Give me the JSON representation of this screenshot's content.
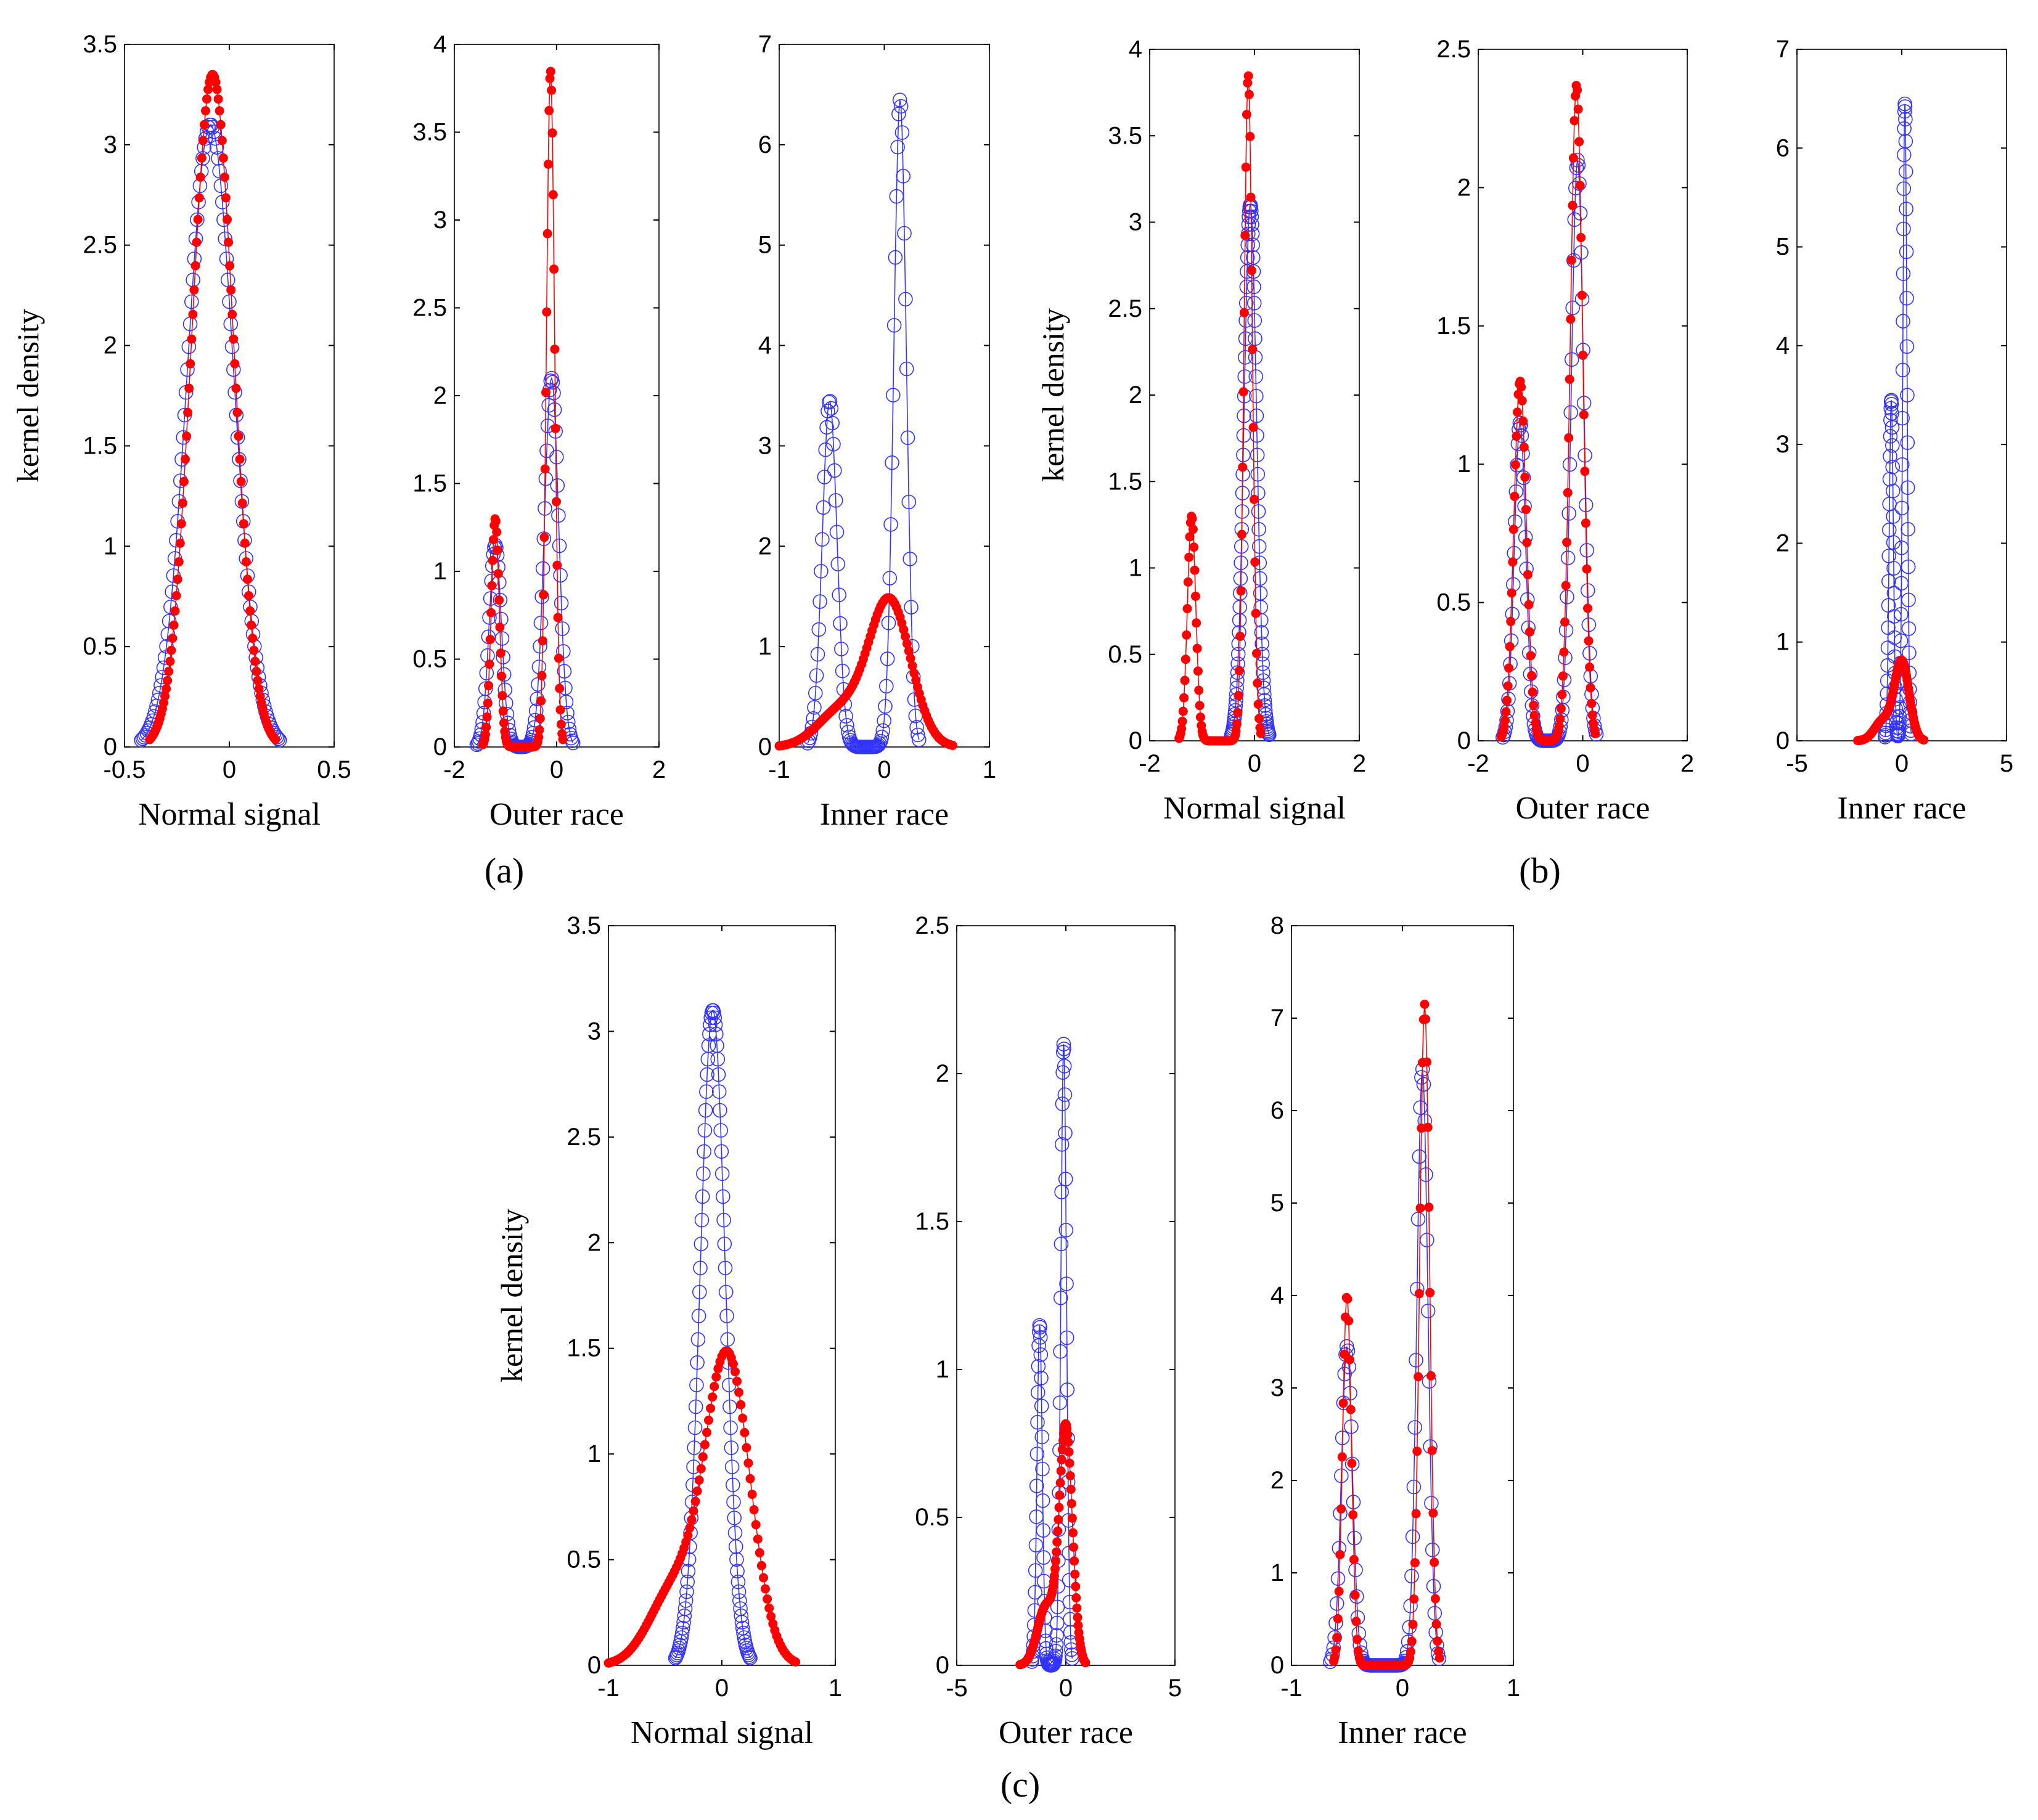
{
  "figure": {
    "panel_labels": [
      "(a)",
      "(b)",
      "(c)"
    ],
    "ylabel": "kernel density"
  },
  "colors": {
    "blue_series": "#3333ff",
    "red_series": "#ff0000",
    "axes": "#000000"
  },
  "series_legend": [
    {
      "name": "blue open circles",
      "marker": "open-circle",
      "color": "#3333ff"
    },
    {
      "name": "red filled dots",
      "marker": "filled-dot",
      "color": "#ff0000"
    }
  ],
  "chart_data": [
    {
      "id": "a1",
      "type": "line",
      "panel": "(a)",
      "title": "",
      "xlabel": "Normal signal",
      "ylabel": "kernel density",
      "xlim": [
        -0.5,
        0.5
      ],
      "ylim": [
        0,
        3.5
      ],
      "xticks": [
        -0.5,
        0,
        0.5
      ],
      "yticks": [
        0,
        0.5,
        1,
        1.5,
        2,
        2.5,
        3,
        3.5
      ],
      "series": [
        {
          "name": "blue",
          "style": "open-circle",
          "components": [
            {
              "mu": -0.09,
              "sigma": 0.11,
              "peak": 3.1
            }
          ]
        },
        {
          "name": "red",
          "style": "filled-dot",
          "components": [
            {
              "mu": -0.08,
              "sigma": 0.1,
              "peak": 3.35
            }
          ]
        }
      ]
    },
    {
      "id": "a2",
      "type": "line",
      "panel": "(a)",
      "title": "",
      "xlabel": "Outer race",
      "ylabel": "",
      "xlim": [
        -2,
        2
      ],
      "ylim": [
        0,
        4
      ],
      "xticks": [
        -2,
        0,
        2
      ],
      "yticks": [
        0,
        0.5,
        1,
        1.5,
        2,
        2.5,
        3,
        3.5,
        4
      ],
      "series": [
        {
          "name": "blue",
          "style": "open-circle",
          "components": [
            {
              "mu": -1.2,
              "sigma": 0.12,
              "peak": 1.15
            },
            {
              "mu": -0.1,
              "sigma": 0.14,
              "peak": 2.1
            }
          ]
        },
        {
          "name": "red",
          "style": "filled-dot",
          "components": [
            {
              "mu": -1.2,
              "sigma": 0.08,
              "peak": 1.3
            },
            {
              "mu": -0.12,
              "sigma": 0.08,
              "peak": 3.85
            }
          ]
        }
      ]
    },
    {
      "id": "a3",
      "type": "line",
      "panel": "(a)",
      "title": "",
      "xlabel": "Inner race",
      "ylabel": "",
      "xlim": [
        -1,
        1
      ],
      "ylim": [
        0,
        7
      ],
      "xticks": [
        -1,
        0,
        1
      ],
      "yticks": [
        0,
        1,
        2,
        3,
        4,
        5,
        6,
        7
      ],
      "series": [
        {
          "name": "blue",
          "style": "open-circle",
          "components": [
            {
              "mu": -0.52,
              "sigma": 0.07,
              "peak": 3.45
            },
            {
              "mu": 0.15,
              "sigma": 0.06,
              "peak": 6.45
            }
          ]
        },
        {
          "name": "red",
          "style": "filled-dot",
          "components": [
            {
              "mu": 0.05,
              "sigma": 0.2,
              "peak": 1.45
            },
            {
              "mu": -0.42,
              "sigma": 0.22,
              "peak": 0.35
            }
          ]
        }
      ]
    },
    {
      "id": "b1",
      "type": "line",
      "panel": "(b)",
      "title": "",
      "xlabel": "Normal signal",
      "ylabel": "kernel density",
      "xlim": [
        -2,
        2
      ],
      "ylim": [
        0,
        4
      ],
      "xticks": [
        -2,
        0,
        2
      ],
      "yticks": [
        0,
        0.5,
        1,
        1.5,
        2,
        2.5,
        3,
        3.5,
        4
      ],
      "series": [
        {
          "name": "blue",
          "style": "open-circle",
          "components": [
            {
              "mu": -0.08,
              "sigma": 0.12,
              "peak": 3.1
            }
          ]
        },
        {
          "name": "red",
          "style": "filled-dot",
          "components": [
            {
              "mu": -1.2,
              "sigma": 0.08,
              "peak": 1.3
            },
            {
              "mu": -0.12,
              "sigma": 0.08,
              "peak": 3.85
            }
          ]
        }
      ]
    },
    {
      "id": "b2",
      "type": "line",
      "panel": "(b)",
      "title": "",
      "xlabel": "Outer race",
      "ylabel": "",
      "xlim": [
        -2,
        2
      ],
      "ylim": [
        0,
        2.5
      ],
      "xticks": [
        -2,
        0,
        2
      ],
      "yticks": [
        0,
        0.5,
        1,
        1.5,
        2,
        2.5
      ],
      "series": [
        {
          "name": "blue",
          "style": "open-circle",
          "components": [
            {
              "mu": -1.2,
              "sigma": 0.11,
              "peak": 1.15
            },
            {
              "mu": -0.1,
              "sigma": 0.12,
              "peak": 2.1
            }
          ]
        },
        {
          "name": "red",
          "style": "filled-dot",
          "components": [
            {
              "mu": -1.2,
              "sigma": 0.12,
              "peak": 1.3
            },
            {
              "mu": -0.12,
              "sigma": 0.12,
              "peak": 2.37
            }
          ]
        }
      ]
    },
    {
      "id": "b3",
      "type": "line",
      "panel": "(b)",
      "title": "",
      "xlabel": "Inner race",
      "ylabel": "",
      "xlim": [
        -5,
        5
      ],
      "ylim": [
        0,
        7
      ],
      "xticks": [
        -5,
        0,
        5
      ],
      "yticks": [
        0,
        1,
        2,
        3,
        4,
        5,
        6,
        7
      ],
      "series": [
        {
          "name": "blue",
          "style": "open-circle",
          "components": [
            {
              "mu": -0.5,
              "sigma": 0.1,
              "peak": 3.45
            },
            {
              "mu": 0.15,
              "sigma": 0.1,
              "peak": 6.45
            }
          ]
        },
        {
          "name": "red",
          "style": "filled-dot",
          "components": [
            {
              "mu": 0.0,
              "sigma": 0.35,
              "peak": 0.8
            },
            {
              "mu": -0.9,
              "sigma": 0.4,
              "peak": 0.2
            }
          ]
        }
      ]
    },
    {
      "id": "c1",
      "type": "line",
      "panel": "(c)",
      "title": "",
      "xlabel": "Normal signal",
      "ylabel": "kernel density",
      "xlim": [
        -1,
        1
      ],
      "ylim": [
        0,
        3.5
      ],
      "xticks": [
        -1,
        0,
        1
      ],
      "yticks": [
        0,
        0.5,
        1,
        1.5,
        2,
        2.5,
        3,
        3.5
      ],
      "series": [
        {
          "name": "blue",
          "style": "open-circle",
          "components": [
            {
              "mu": -0.08,
              "sigma": 0.11,
              "peak": 3.1
            }
          ]
        },
        {
          "name": "red",
          "style": "filled-dot",
          "components": [
            {
              "mu": 0.05,
              "sigma": 0.2,
              "peak": 1.45
            },
            {
              "mu": -0.42,
              "sigma": 0.22,
              "peak": 0.35
            }
          ]
        }
      ]
    },
    {
      "id": "c2",
      "type": "line",
      "panel": "(c)",
      "title": "",
      "xlabel": "Outer race",
      "ylabel": "",
      "xlim": [
        -5,
        5
      ],
      "ylim": [
        0,
        2.5
      ],
      "xticks": [
        -5,
        0,
        5
      ],
      "yticks": [
        0,
        0.5,
        1,
        1.5,
        2,
        2.5
      ],
      "series": [
        {
          "name": "blue",
          "style": "open-circle",
          "components": [
            {
              "mu": -1.2,
              "sigma": 0.12,
              "peak": 1.15
            },
            {
              "mu": -0.1,
              "sigma": 0.13,
              "peak": 2.1
            }
          ]
        },
        {
          "name": "red",
          "style": "filled-dot",
          "components": [
            {
              "mu": 0.0,
              "sigma": 0.3,
              "peak": 0.8
            },
            {
              "mu": -0.9,
              "sigma": 0.4,
              "peak": 0.2
            }
          ]
        }
      ]
    },
    {
      "id": "c3",
      "type": "line",
      "panel": "(c)",
      "title": "",
      "xlabel": "Inner race",
      "ylabel": "",
      "xlim": [
        -1,
        1
      ],
      "ylim": [
        0,
        8
      ],
      "xticks": [
        -1,
        0,
        1
      ],
      "yticks": [
        0,
        1,
        2,
        3,
        4,
        5,
        6,
        7,
        8
      ],
      "series": [
        {
          "name": "blue",
          "style": "open-circle",
          "components": [
            {
              "mu": -0.5,
              "sigma": 0.05,
              "peak": 3.45
            },
            {
              "mu": 0.18,
              "sigma": 0.05,
              "peak": 6.45
            }
          ]
        },
        {
          "name": "red",
          "style": "filled-dot",
          "components": [
            {
              "mu": -0.5,
              "sigma": 0.04,
              "peak": 4.0
            },
            {
              "mu": 0.2,
              "sigma": 0.045,
              "peak": 7.15
            }
          ]
        }
      ]
    }
  ]
}
